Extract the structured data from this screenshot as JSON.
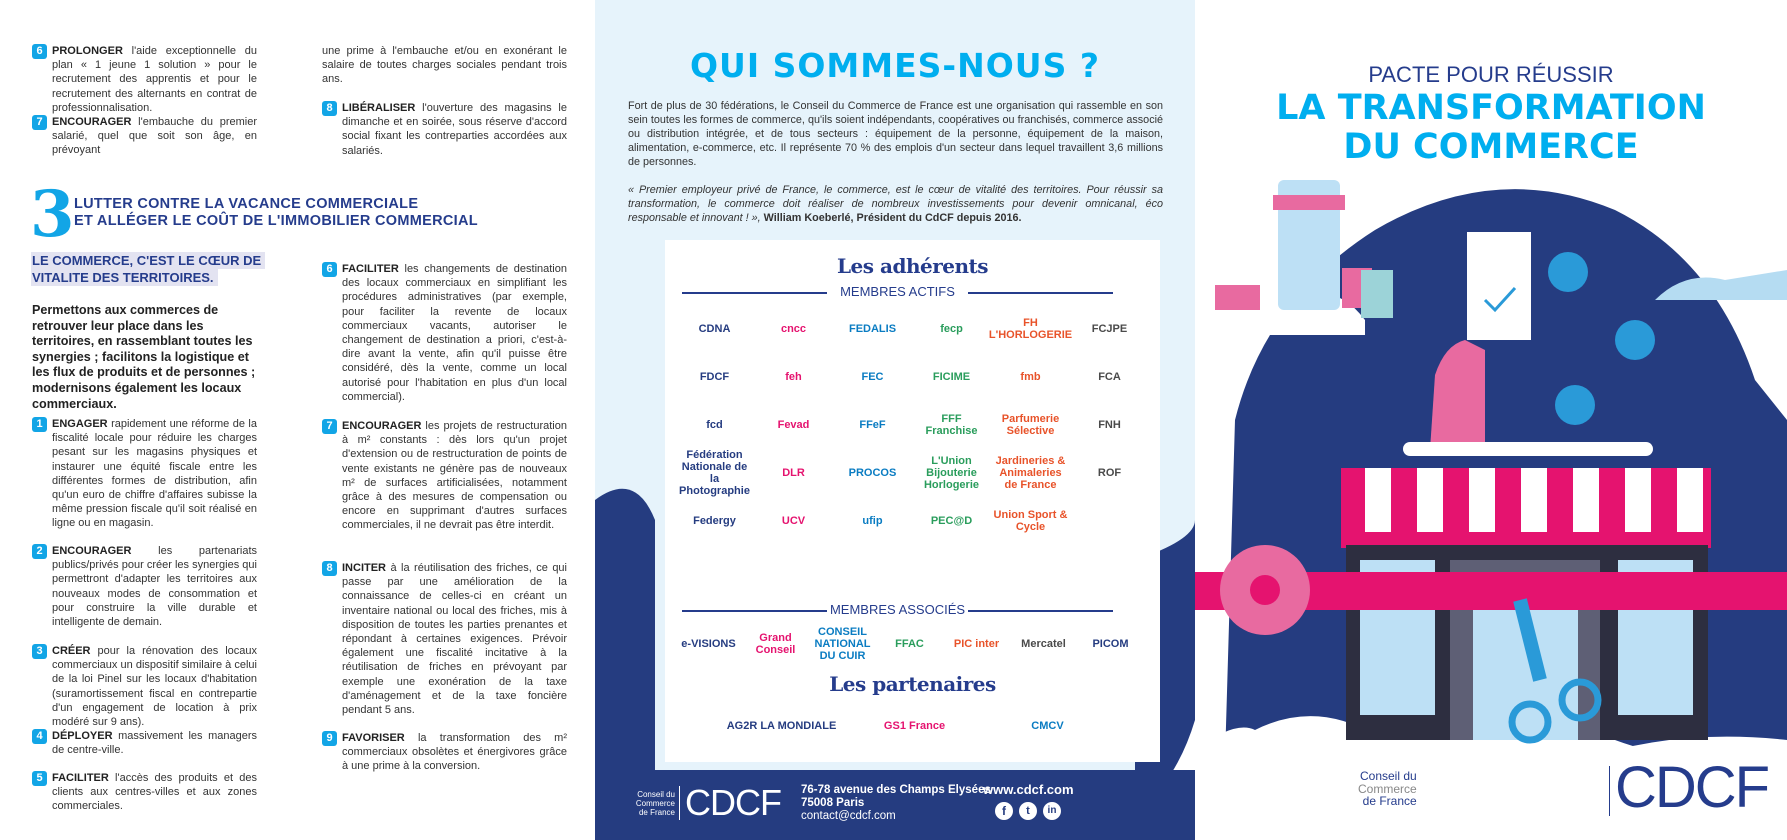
{
  "left": {
    "col1_top_items": [
      {
        "num": "6",
        "kw": "PROLONGER",
        "text": " l'aide exceptionnelle du plan « 1 jeune 1 solution » pour le recrutement des apprentis et pour le recrutement des alternants en contrat de professionnalisation."
      },
      {
        "num": "7",
        "kw": "ENCOURAGER",
        "text": " l'embauche du premier salarié, quel que soit son âge, en prévoyant"
      }
    ],
    "col2_top_cont": "une prime à l'embauche et/ou en exonérant le salaire de toutes charges sociales pendant trois ans.",
    "col2_top_items": [
      {
        "num": "8",
        "kw": "LIBÉRALISER",
        "text": " l'ouverture des magasins le dimanche et en soirée, sous réserve d'accord social fixant les contreparties accordées aux salariés."
      }
    ],
    "section3": {
      "number": "3",
      "title_line1": "LUTTER CONTRE LA VACANCE COMMERCIALE",
      "title_line2": "ET ALLÉGER LE COÛT DE L'IMMOBILIER COMMERCIAL",
      "highlight_line1": "LE COMMERCE, C'EST LE CŒUR DE",
      "highlight_line2": "VITALITE DES TERRITOIRES.",
      "lead": "Permettons aux commerces de retrouver leur place dans les territoires, en rassemblant toutes les synergies ; facilitons la logistique et les flux de produits et de personnes ; modernisons également les locaux commerciaux.",
      "col1_items": [
        {
          "num": "1",
          "kw": "ENGAGER",
          "text": " rapidement une réforme de la fiscalité locale pour réduire les charges pesant sur les magasins physiques et instaurer une équité fiscale entre les différentes formes de distribution, afin qu'un euro de chiffre d'affaires subisse la même pression fiscale qu'il soit réalisé en ligne ou en magasin."
        },
        {
          "num": "2",
          "kw": "ENCOURAGER",
          "text": " les partenariats publics/privés pour créer les synergies qui permettront d'adapter les territoires aux nouveaux modes de consommation et pour construire la ville durable et intelligente de demain."
        },
        {
          "num": "3",
          "kw": "CRÉER",
          "text": " pour la rénovation des locaux commerciaux un dispositif similaire à celui de la loi Pinel sur les locaux d'habitation (suramortissement fiscal en contrepartie d'un engagement de location à prix modéré sur 9 ans)."
        },
        {
          "num": "4",
          "kw": "DÉPLOYER",
          "text": " massivement les managers de centre-ville."
        },
        {
          "num": "5",
          "kw": "FACILITER",
          "text": " l'accès des produits et des clients aux centres-villes et aux zones commerciales."
        }
      ],
      "col2_items": [
        {
          "num": "6",
          "kw": "FACILITER",
          "text": " les changements de destination des locaux commerciaux en simplifiant les procédures administratives (par exemple, pour faciliter la revente de locaux commerciaux vacants, autoriser le changement de destination a priori, c'est-à-dire avant la vente, afin qu'il puisse être considéré, dès la vente, comme un local autorisé pour l'habitation en plus d'un local commercial)."
        },
        {
          "num": "7",
          "kw": "ENCOURAGER",
          "text": " les projets de restructuration à m² constants : dès lors qu'un projet d'extension ou de restructuration de points de vente existants ne génère pas de nouveaux m² de surfaces artificialisées, notamment grâce à des mesures de compensation ou encore en supprimant d'autres surfaces commerciales, il ne devrait pas être interdit."
        },
        {
          "num": "8",
          "kw": "INCITER",
          "text": " à la réutilisation des friches, ce qui passe par une amélioration de la connaissance de celles-ci en créant un inventaire national ou local des friches, mis à disposition de toutes les parties prenantes et répondant à certaines exigences. Prévoir également une fiscalité incitative à la réutilisation de friches en prévoyant par exemple une exonération de la taxe d'aménagement et de la taxe foncière pendant 5 ans."
        },
        {
          "num": "9",
          "kw": "FAVORISER",
          "text": " la transformation des m² commerciaux obsolètes et énergivores grâce à une prime à la conversion."
        }
      ]
    }
  },
  "middle": {
    "title": "QUI SOMMES-NOUS ?",
    "paragraph": "Fort de plus de 30 fédérations, le Conseil du Commerce de France est une organisation qui rassemble en son sein toutes les formes de commerce, qu'ils soient indépendants, coopératives ou franchisés, commerce associé ou distribution intégrée, et de tous secteurs : équipement de la personne, équipement de la maison, alimentation, e-commerce, etc. Il représente 70 % des emplois d'un secteur dans lequel travaillent 3,6 millions de personnes.",
    "quote": "« Premier employeur privé de France, le commerce, est le cœur de vitalité des territoires. Pour réussir sa transformation, le commerce doit réaliser de nombreux investissements pour devenir omnicanal, éco responsable et innovant ! »,",
    "quote_author": " William Koeberlé, Président du CdCF depuis 2016.",
    "adherents_title": "Les adhérents",
    "actifs_label": "MEMBRES ACTIFS",
    "actifs_logos": [
      "CDNA",
      "cncc",
      "FEDALIS",
      "fecp",
      "FH L'HORLOGERIE",
      "FCJPE",
      "FDCF",
      "feh",
      "FEC",
      "FICIME",
      "fmb",
      "FCA",
      "fcd",
      "Fevad",
      "FFeF",
      "FFF Franchise",
      "Parfumerie Sélective",
      "FNH",
      "Fédération Nationale de la Photographie",
      "DLR",
      "PROCOS",
      "L'Union Bijouterie Horlogerie",
      "Jardineries & Animaleries de France",
      "ROF",
      "Federgy",
      "UCV",
      "ufip",
      "PEC@D",
      "Union Sport & Cycle"
    ],
    "associes_label": "MEMBRES ASSOCIÉS",
    "associes_logos": [
      "e-VISIONS",
      "Grand Conseil",
      "CONSEIL NATIONAL DU CUIR",
      "FFAC",
      "PIC inter",
      "Mercatel",
      "PICOM"
    ],
    "partenaires_title": "Les partenaires",
    "partenaires_logos": [
      "AG2R LA MONDIALE",
      "GS1 France",
      "CMCV"
    ],
    "footer": {
      "logo_sub": "Conseil du Commerce de France",
      "logo_text": "CDCF",
      "address1": "76-78 avenue des Champs Elysées",
      "address2": "75008 Paris",
      "email": "contact@cdcf.com",
      "website": "www.cdcf.com",
      "social": [
        "facebook-icon",
        "twitter-icon",
        "linkedin-icon"
      ]
    }
  },
  "right": {
    "title_line1": "PACTE POUR RÉUSSIR",
    "title_line2": "LA TRANSFORMATION",
    "title_line3": "DU COMMERCE",
    "logo_sub1": "Conseil du",
    "logo_sub2": "Commerce",
    "logo_sub3": "de France",
    "logo_text": "CDCF"
  },
  "colors": {
    "navy": "#253c80",
    "cyan": "#00aeef",
    "pink": "#e5136f",
    "light_blue_bg": "#e6f3fb"
  }
}
